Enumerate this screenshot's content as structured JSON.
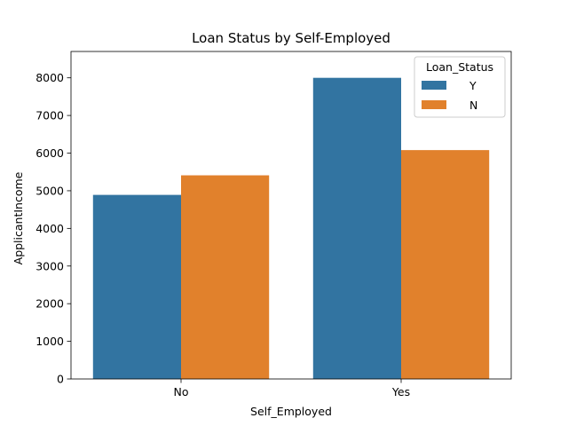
{
  "chart_data": {
    "type": "bar",
    "title": "Loan Status by Self-Employed",
    "xlabel": "Self_Employed",
    "ylabel": "ApplicantIncome",
    "categories": [
      "No",
      "Yes"
    ],
    "series": [
      {
        "name": "Y",
        "values": [
          4890,
          8000
        ],
        "color": "#3274a1"
      },
      {
        "name": "N",
        "values": [
          5410,
          6080
        ],
        "color": "#e1812c"
      }
    ],
    "ylim": [
      0,
      8700
    ],
    "yticks": [
      0,
      1000,
      2000,
      3000,
      4000,
      5000,
      6000,
      7000,
      8000
    ],
    "grid": false,
    "legend": {
      "title": "Loan_Status",
      "placement": "top-right"
    }
  }
}
